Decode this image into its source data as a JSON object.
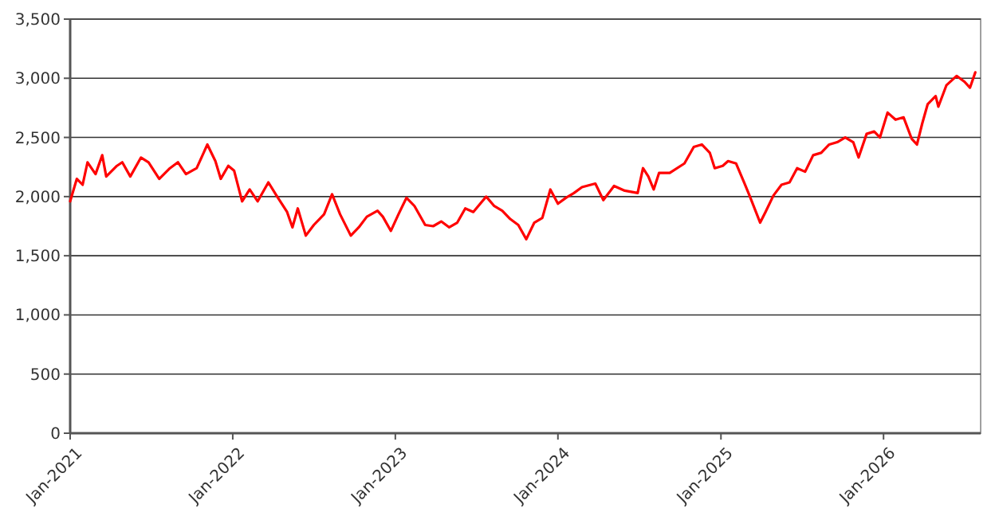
{
  "chart_data": {
    "type": "line",
    "x": [
      "2021-01-01",
      "2021-01-16",
      "2021-01-29",
      "2021-02-09",
      "2021-02-27",
      "2021-03-14",
      "2021-03-23",
      "2021-04-16",
      "2021-04-28",
      "2021-05-16",
      "2021-06-09",
      "2021-06-26",
      "2021-07-20",
      "2021-08-13",
      "2021-08-31",
      "2021-09-18",
      "2021-10-12",
      "2021-11-05",
      "2021-11-23",
      "2021-12-05",
      "2021-12-22",
      "2022-01-04",
      "2022-01-22",
      "2022-02-08",
      "2022-02-26",
      "2022-03-22",
      "2022-04-09",
      "2022-05-03",
      "2022-05-15",
      "2022-05-27",
      "2022-06-14",
      "2022-07-02",
      "2022-07-25",
      "2022-08-12",
      "2022-08-30",
      "2022-09-23",
      "2022-10-11",
      "2022-10-29",
      "2022-11-22",
      "2022-12-04",
      "2022-12-22",
      "2023-01-08",
      "2023-01-26",
      "2023-02-13",
      "2023-03-09",
      "2023-03-27",
      "2023-04-14",
      "2023-05-02",
      "2023-05-20",
      "2023-06-07",
      "2023-06-25",
      "2023-07-24",
      "2023-08-11",
      "2023-08-29",
      "2023-09-16",
      "2023-10-04",
      "2023-10-22",
      "2023-11-09",
      "2023-11-27",
      "2023-12-15",
      "2024-01-01",
      "2024-01-19",
      "2024-02-06",
      "2024-02-24",
      "2024-03-25",
      "2024-04-12",
      "2024-05-06",
      "2024-05-30",
      "2024-06-28",
      "2024-07-10",
      "2024-07-22",
      "2024-08-03",
      "2024-08-15",
      "2024-09-08",
      "2024-10-11",
      "2024-11-01",
      "2024-11-19",
      "2024-12-07",
      "2024-12-18",
      "2025-01-05",
      "2025-01-17",
      "2025-02-04",
      "2025-02-22",
      "2025-03-06",
      "2025-03-30",
      "2025-04-11",
      "2025-04-29",
      "2025-05-17",
      "2025-06-04",
      "2025-06-21",
      "2025-07-09",
      "2025-07-27",
      "2025-08-14",
      "2025-09-01",
      "2025-09-19",
      "2025-10-07",
      "2025-10-25",
      "2025-11-06",
      "2025-11-24",
      "2025-12-11",
      "2025-12-24",
      "2026-01-10",
      "2026-01-28",
      "2026-02-15",
      "2026-03-05",
      "2026-03-17",
      "2026-03-29",
      "2026-04-10",
      "2026-04-28",
      "2026-05-04",
      "2026-05-22",
      "2026-06-14",
      "2026-07-02",
      "2026-07-14",
      "2026-07-26"
    ],
    "series": [
      {
        "color": "#ff0000",
        "values": [
          1960,
          2150,
          2100,
          2290,
          2190,
          2350,
          2170,
          2260,
          2290,
          2170,
          2330,
          2290,
          2150,
          2240,
          2290,
          2190,
          2240,
          2440,
          2300,
          2150,
          2260,
          2220,
          1960,
          2060,
          1960,
          2120,
          2010,
          1870,
          1740,
          1900,
          1670,
          1760,
          1850,
          2020,
          1850,
          1670,
          1740,
          1830,
          1880,
          1830,
          1710,
          1850,
          1990,
          1920,
          1760,
          1750,
          1790,
          1740,
          1780,
          1900,
          1870,
          2000,
          1920,
          1880,
          1810,
          1760,
          1640,
          1780,
          1820,
          2060,
          1940,
          1990,
          2030,
          2080,
          2110,
          1970,
          2090,
          2050,
          2030,
          2240,
          2170,
          2060,
          2200,
          2200,
          2280,
          2420,
          2440,
          2370,
          2240,
          2260,
          2300,
          2280,
          2120,
          2010,
          1780,
          1870,
          2010,
          2100,
          2120,
          2240,
          2210,
          2350,
          2370,
          2440,
          2460,
          2500,
          2460,
          2330,
          2530,
          2550,
          2500,
          2710,
          2650,
          2670,
          2490,
          2440,
          2620,
          2780,
          2850,
          2760,
          2940,
          3020,
          2970,
          2920,
          3050
        ]
      }
    ],
    "xlim": [
      "2021-01-01",
      "2026-08-07"
    ],
    "xticks": [
      {
        "value": "2021-01-01",
        "label": "Jan-2021"
      },
      {
        "value": "2022-01-01",
        "label": "Jan-2022"
      },
      {
        "value": "2023-01-01",
        "label": "Jan-2023"
      },
      {
        "value": "2024-01-01",
        "label": "Jan-2024"
      },
      {
        "value": "2025-01-01",
        "label": "Jan-2025"
      },
      {
        "value": "2026-01-01",
        "label": "Jan-2026"
      }
    ],
    "ylim": [
      0,
      3500
    ],
    "yticks": [
      {
        "value": 0,
        "label": "0"
      },
      {
        "value": 500,
        "label": "500"
      },
      {
        "value": 1000,
        "label": "1,000"
      },
      {
        "value": 1500,
        "label": "1,500"
      },
      {
        "value": 2000,
        "label": "2,000"
      },
      {
        "value": 2500,
        "label": "2,500"
      },
      {
        "value": 3000,
        "label": "3,000"
      },
      {
        "value": 3500,
        "label": "3,500"
      }
    ],
    "grid": "y",
    "marker": "none",
    "line_style": "solid"
  }
}
